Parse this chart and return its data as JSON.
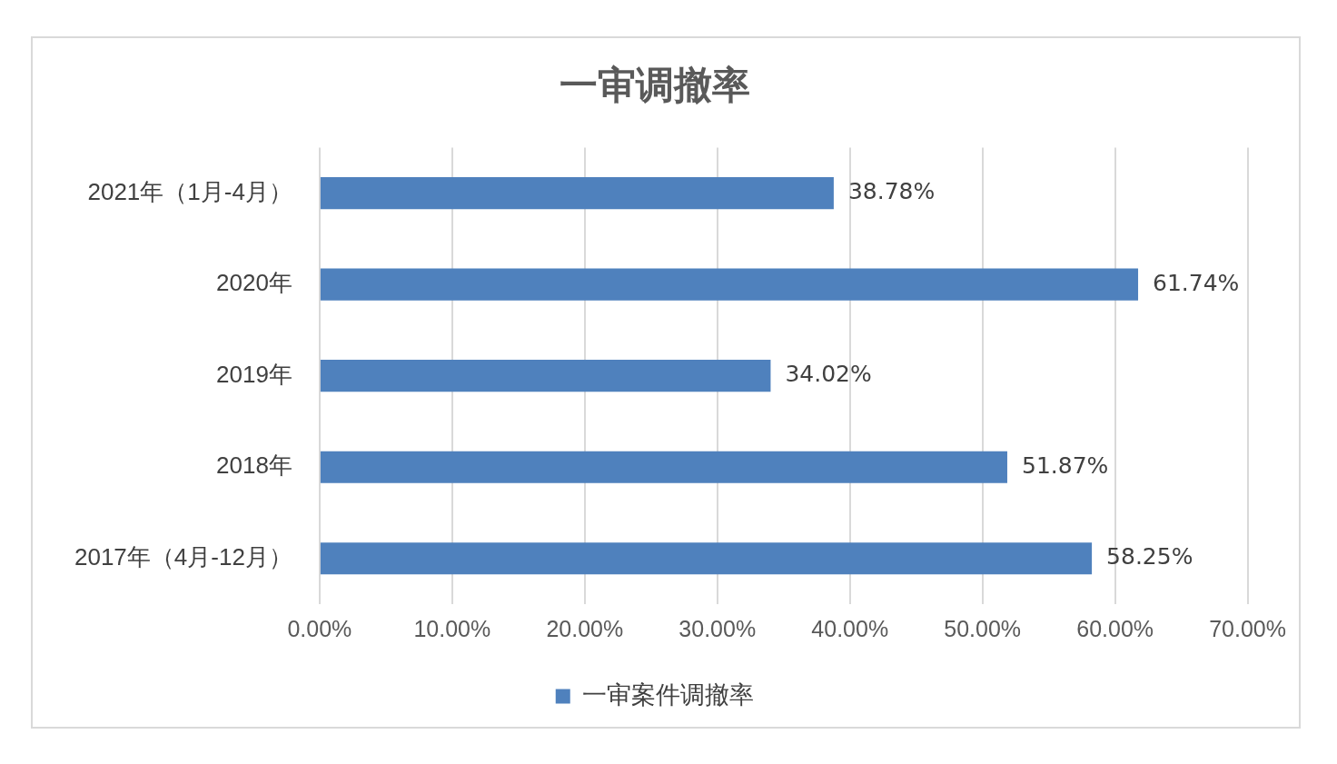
{
  "chart_data": {
    "type": "bar",
    "orientation": "horizontal",
    "title": "一审调撤率",
    "categories": [
      "2021年（1月-4月）",
      "2020年",
      "2019年",
      "2018年",
      "2017年（4月-12月）"
    ],
    "series": [
      {
        "name": "一审案件调撤率",
        "color": "#4f81bd",
        "values": [
          38.78,
          61.74,
          34.02,
          51.87,
          58.25
        ],
        "value_labels": [
          "38.78%",
          "61.74%",
          "34.02%",
          "51.87%",
          "58.25%"
        ]
      }
    ],
    "xlim": [
      0,
      70
    ],
    "xticks": [
      {
        "value": 0,
        "label": "0.00%"
      },
      {
        "value": 10,
        "label": "10.00%"
      },
      {
        "value": 20,
        "label": "20.00%"
      },
      {
        "value": 30,
        "label": "30.00%"
      },
      {
        "value": 40,
        "label": "40.00%"
      },
      {
        "value": 50,
        "label": "50.00%"
      },
      {
        "value": 60,
        "label": "60.00%"
      },
      {
        "value": 70,
        "label": "70.00%"
      }
    ],
    "grid": "x",
    "legend": "bottom"
  }
}
